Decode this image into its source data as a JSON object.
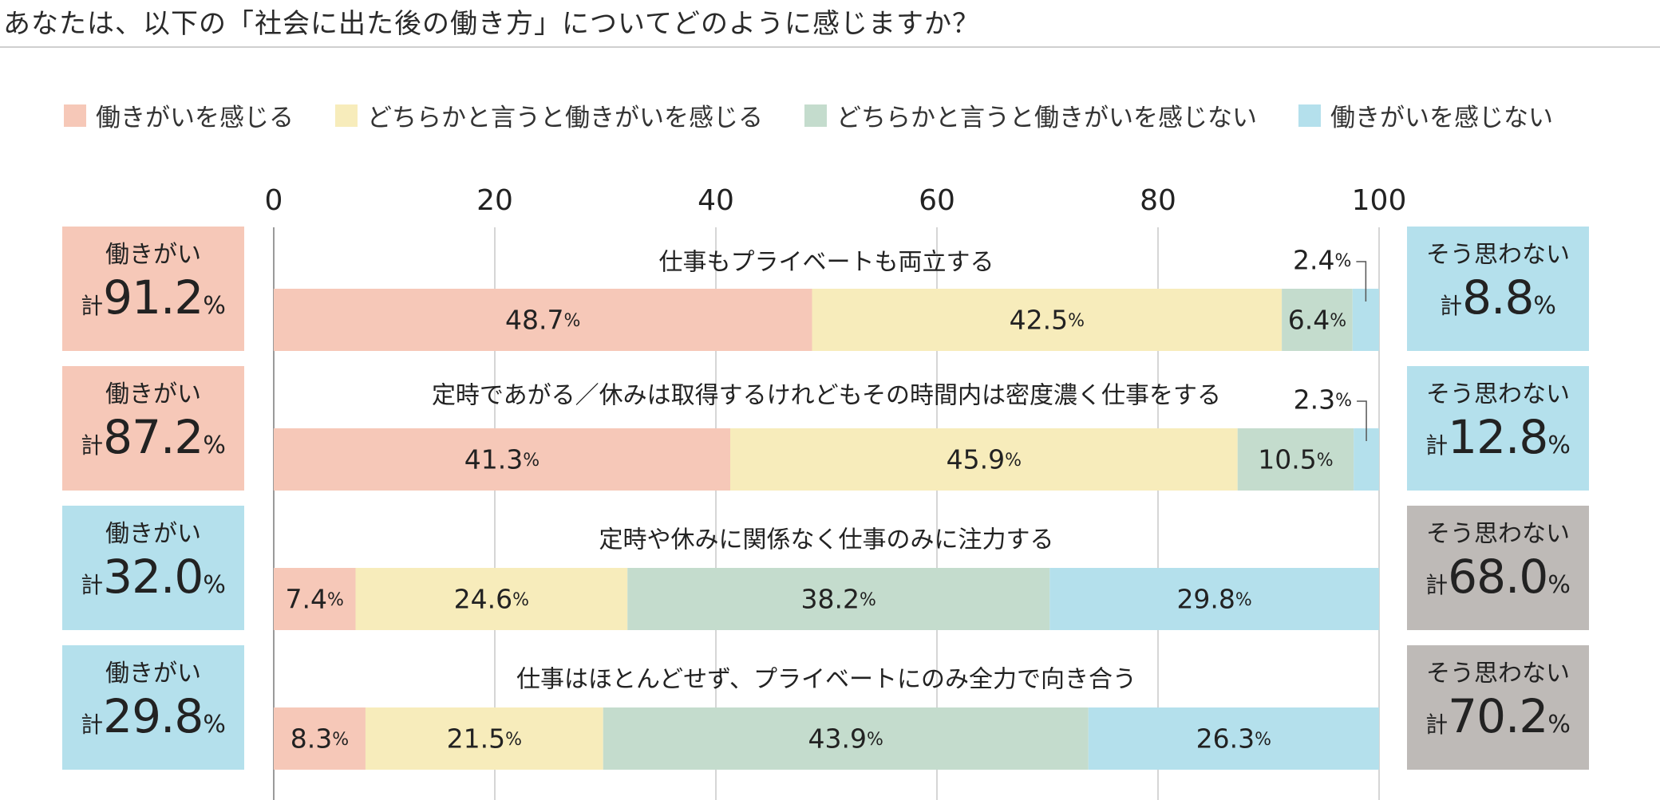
{
  "title": "あなたは、以下の「社会に出た後の働き方」についてどのように感じますか？",
  "legend": [
    {
      "label": "働きがいを感じる",
      "color": "#f6c8b8"
    },
    {
      "label": "どちらかと言うと働きがいを感じる",
      "color": "#f7ecbb"
    },
    {
      "label": "どちらかと言うと働きがいを感じない",
      "color": "#c4dccd"
    },
    {
      "label": "働きがいを感じない",
      "color": "#b4e0ec"
    }
  ],
  "left_boxes": [
    {
      "label": "働きがい",
      "prefix": "計",
      "value": "91.2",
      "unit": "%",
      "color": "#f6c8b8"
    },
    {
      "label": "働きがい",
      "prefix": "計",
      "value": "87.2",
      "unit": "%",
      "color": "#f6c8b8"
    },
    {
      "label": "働きがい",
      "prefix": "計",
      "value": "32.0",
      "unit": "%",
      "color": "#b4e0ec"
    },
    {
      "label": "働きがい",
      "prefix": "計",
      "value": "29.8",
      "unit": "%",
      "color": "#b4e0ec"
    }
  ],
  "right_boxes": [
    {
      "label": "そう思わない",
      "prefix": "計",
      "value": "8.8",
      "unit": "%",
      "color": "#b4e0ec"
    },
    {
      "label": "そう思わない",
      "prefix": "計",
      "value": "12.8",
      "unit": "%",
      "color": "#b4e0ec"
    },
    {
      "label": "そう思わない",
      "prefix": "計",
      "value": "68.0",
      "unit": "%",
      "color": "#bebab7"
    },
    {
      "label": "そう思わない",
      "prefix": "計",
      "value": "70.2",
      "unit": "%",
      "color": "#bebab7"
    }
  ],
  "chart_data": {
    "type": "bar",
    "orientation": "horizontal",
    "stacked": true,
    "xlim": [
      0,
      100
    ],
    "xticks": [
      "0",
      "20",
      "40",
      "60",
      "80",
      "100"
    ],
    "unit": "%",
    "grid": true,
    "legend_position": "top",
    "categories": [
      "仕事もプライベートも両立する",
      "定時であがる／休みは取得するけれどもその時間内は密度濃く仕事をする",
      "定時や休みに関係なく仕事のみに注力する",
      "仕事はほとんどせず、プライベートにのみ全力で向き合う"
    ],
    "series": [
      {
        "name": "働きがいを感じる",
        "color": "#f6c8b8",
        "values": [
          48.7,
          41.3,
          7.4,
          8.3
        ]
      },
      {
        "name": "どちらかと言うと働きがいを感じる",
        "color": "#f7ecbb",
        "values": [
          42.5,
          45.9,
          24.6,
          21.5
        ]
      },
      {
        "name": "どちらかと言うと働きがいを感じない",
        "color": "#c4dccd",
        "values": [
          6.4,
          10.5,
          38.2,
          43.9
        ]
      },
      {
        "name": "働きがいを感じない",
        "color": "#b4e0ec",
        "values": [
          2.4,
          2.3,
          29.8,
          26.3
        ]
      }
    ]
  }
}
